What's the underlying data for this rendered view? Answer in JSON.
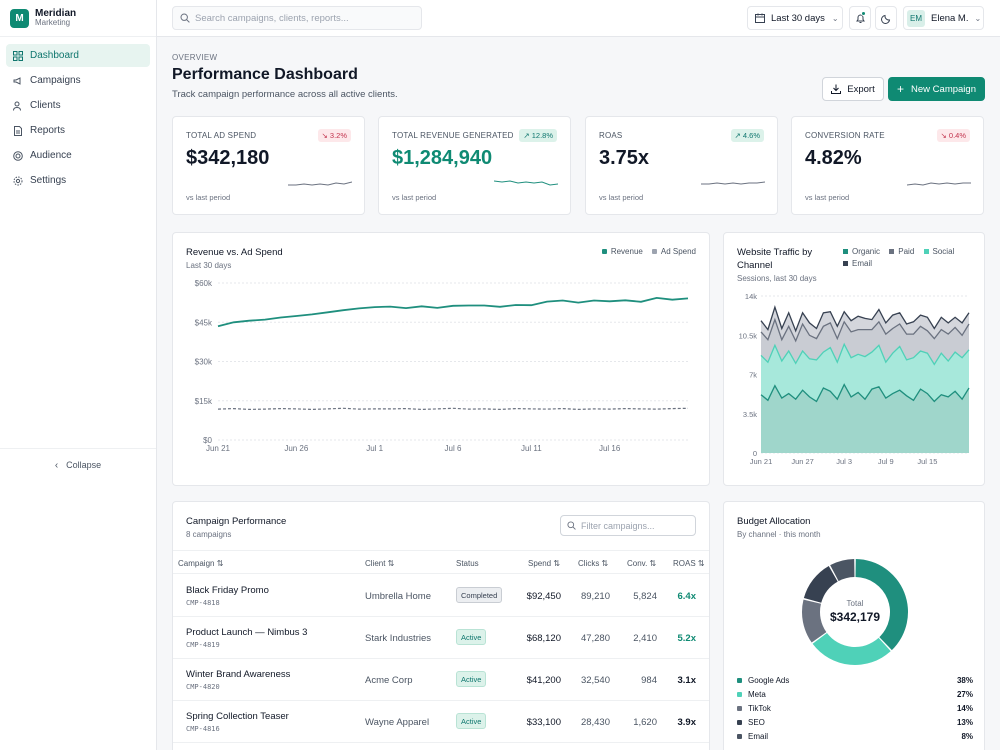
{
  "brand": {
    "name": "Meridian",
    "sub": "Marketing",
    "logo": "M"
  },
  "nav": [
    {
      "label": "Dashboard",
      "icon": "grid-icon",
      "active": true
    },
    {
      "label": "Campaigns",
      "icon": "megaphone-icon",
      "active": false
    },
    {
      "label": "Clients",
      "icon": "users-icon",
      "active": false
    },
    {
      "label": "Reports",
      "icon": "file-icon",
      "active": false
    },
    {
      "label": "Audience",
      "icon": "target-icon",
      "active": false
    },
    {
      "label": "Settings",
      "icon": "gear-icon",
      "active": false
    }
  ],
  "collapse_label": "Collapse",
  "topbar": {
    "search_placeholder": "Search campaigns, clients, reports...",
    "date_range": "Last 30 days",
    "user_initials": "EM",
    "user_name": "Elena M."
  },
  "header": {
    "eyebrow": "OVERVIEW",
    "title": "Performance Dashboard",
    "subtitle": "Track campaign performance across all active clients.",
    "export_label": "Export",
    "new_label": "New Campaign"
  },
  "kpis": [
    {
      "label": "TOTAL AD SPEND",
      "value": "$342,180",
      "badge": "↘ 3.2%",
      "trend": "down",
      "foot": "vs last period",
      "teal": false
    },
    {
      "label": "TOTAL REVENUE GENERATED",
      "value": "$1,284,940",
      "badge": "↗ 12.8%",
      "trend": "up",
      "foot": "vs last period",
      "teal": true
    },
    {
      "label": "ROAS",
      "value": "3.75x",
      "badge": "↗ 4.6%",
      "trend": "up",
      "foot": "vs last period",
      "teal": false
    },
    {
      "label": "CONVERSION RATE",
      "value": "4.82%",
      "badge": "↘ 0.4%",
      "trend": "down",
      "foot": "vs last period",
      "teal": false
    }
  ],
  "revenue_chart": {
    "title": "Revenue vs. Ad Spend",
    "subtitle": "Last 30 days",
    "legend": [
      {
        "name": "Revenue",
        "color": "#1f8f7e"
      },
      {
        "name": "Ad Spend",
        "color": "#9ca3af"
      }
    ]
  },
  "traffic_chart": {
    "title_line1": "Website Traffic by",
    "title_line2": "Channel",
    "subtitle": "Sessions, last 30 days",
    "legend": [
      {
        "name": "Organic",
        "color": "#1f8f7e"
      },
      {
        "name": "Paid",
        "color": "#6b7280"
      },
      {
        "name": "Social",
        "color": "#4fd1b8"
      },
      {
        "name": "Email",
        "color": "#374151"
      }
    ]
  },
  "chart_data": [
    {
      "type": "line",
      "title": "Revenue vs. Ad Spend",
      "x_ticks": [
        "Jun 21",
        "Jun 26",
        "Jul 1",
        "Jul 6",
        "Jul 11",
        "Jul 16"
      ],
      "y_ticks": [
        "$0",
        "$15k",
        "$30k",
        "$45k",
        "$60k"
      ],
      "ylim": [
        0,
        60000
      ],
      "series": [
        {
          "name": "Revenue",
          "color": "#1f8f7e",
          "values": [
            43500,
            45000,
            45600,
            46000,
            46800,
            47400,
            48000,
            48800,
            49600,
            50300,
            50800,
            51000,
            50400,
            51100,
            50500,
            51300,
            51400,
            51400,
            50900,
            51600,
            51500,
            52900,
            53300,
            52500,
            53300,
            53000,
            53400,
            52800,
            54300,
            53600,
            54100
          ]
        },
        {
          "name": "Ad Spend",
          "color": "#6b7280",
          "values": [
            11800,
            12000,
            11700,
            11800,
            12000,
            11900,
            11700,
            11900,
            12100,
            11800,
            11900,
            11900,
            12000,
            11700,
            11900,
            12100,
            11800,
            11900,
            11700,
            12000,
            11900,
            11800,
            12000,
            11700,
            11900,
            11800,
            12000,
            11900,
            11800,
            12000,
            12100
          ]
        }
      ],
      "grid": true
    },
    {
      "type": "area",
      "title": "Website Traffic by Channel",
      "x_ticks": [
        "Jun 21",
        "Jun 27",
        "Jul 3",
        "Jul 9",
        "Jul 15"
      ],
      "y_ticks": [
        "0",
        "3.5k",
        "7k",
        "10.5k",
        "14k"
      ],
      "ylim": [
        0,
        14000
      ],
      "stacked": true,
      "series": [
        {
          "name": "Organic",
          "color": "#1f8f7e",
          "values": [
            5200,
            4700,
            6000,
            4900,
            5300,
            4800,
            5600,
            5000,
            4600,
            5800,
            5500,
            4800,
            6100,
            5000,
            5400,
            4800,
            5700,
            5900,
            4900,
            5300,
            5600,
            5100,
            4700,
            5700,
            5300,
            4600,
            5200,
            5000,
            5500,
            4800,
            5800
          ]
        },
        {
          "name": "Social",
          "color": "#4fd1b8",
          "values": [
            3500,
            3400,
            3600,
            3300,
            3800,
            3200,
            3500,
            3400,
            3700,
            3200,
            3900,
            3300,
            3600,
            3500,
            3400,
            3800,
            3300,
            3700,
            3200,
            3600,
            3900,
            3200,
            3800,
            3400,
            3600,
            3300,
            3700,
            3200,
            3500,
            3700,
            3400
          ]
        },
        {
          "name": "Paid",
          "color": "#6b7280",
          "values": [
            2100,
            2000,
            2300,
            1900,
            2200,
            2000,
            2400,
            2100,
            1900,
            2300,
            2200,
            2100,
            2000,
            2300,
            2200,
            2400,
            2000,
            2100,
            2500,
            2200,
            2000,
            2300,
            2100,
            2200,
            2000,
            2300,
            2100,
            2400,
            2200,
            2000,
            2300
          ]
        },
        {
          "name": "Email",
          "color": "#374151",
          "values": [
            1000,
            900,
            1100,
            1000,
            1200,
            900,
            1000,
            1100,
            900,
            1200,
            1000,
            1100,
            900,
            1000,
            1200,
            1000,
            900,
            1100,
            1000,
            1200,
            1000,
            900,
            1100,
            1000,
            1200,
            900,
            1100,
            1000,
            900,
            1100,
            1000
          ]
        }
      ]
    },
    {
      "type": "pie",
      "title": "Budget Allocation",
      "center_label": "Total",
      "center_value": "$342,179",
      "slices": [
        {
          "name": "Google Ads",
          "pct": 38,
          "color": "#1f8f7e"
        },
        {
          "name": "Meta",
          "pct": 27,
          "color": "#4fd1b8"
        },
        {
          "name": "TikTok",
          "pct": 14,
          "color": "#6b7280"
        },
        {
          "name": "SEO",
          "pct": 13,
          "color": "#374151"
        },
        {
          "name": "Email",
          "pct": 8,
          "color": "#4b5563"
        }
      ]
    }
  ],
  "campaigns": {
    "title": "Campaign Performance",
    "subtitle": "8 campaigns",
    "filter_placeholder": "Filter campaigns...",
    "headers": {
      "campaign": "Campaign ⇅",
      "client": "Client ⇅",
      "status": "Status",
      "spend": "Spend ⇅",
      "clicks": "Clicks ⇅",
      "conv": "Conv. ⇅",
      "roas": "ROAS ⇅"
    },
    "rows": [
      {
        "name": "Black Friday Promo",
        "code": "CMP-4818",
        "client": "Umbrella Home",
        "status": "Completed",
        "status_type": "completed",
        "spend": "$92,450",
        "clicks": "89,210",
        "conv": "5,824",
        "roas": "6.4x",
        "roas_style": "teal"
      },
      {
        "name": "Product Launch — Nimbus 3",
        "code": "CMP-4819",
        "client": "Stark Industries",
        "status": "Active",
        "status_type": "active",
        "spend": "$68,120",
        "clicks": "47,280",
        "conv": "2,410",
        "roas": "5.2x",
        "roas_style": "teal"
      },
      {
        "name": "Winter Brand Awareness",
        "code": "CMP-4820",
        "client": "Acme Corp",
        "status": "Active",
        "status_type": "active",
        "spend": "$41,200",
        "clicks": "32,540",
        "conv": "984",
        "roas": "3.1x",
        "roas_style": "dark"
      },
      {
        "name": "Spring Collection Teaser",
        "code": "CMP-4816",
        "client": "Wayne Apparel",
        "status": "Active",
        "status_type": "active",
        "spend": "$33,100",
        "clicks": "28,430",
        "conv": "1,620",
        "roas": "3.9x",
        "roas_style": "dark"
      }
    ]
  },
  "budget": {
    "title": "Budget Allocation",
    "subtitle": "By channel · this month"
  }
}
